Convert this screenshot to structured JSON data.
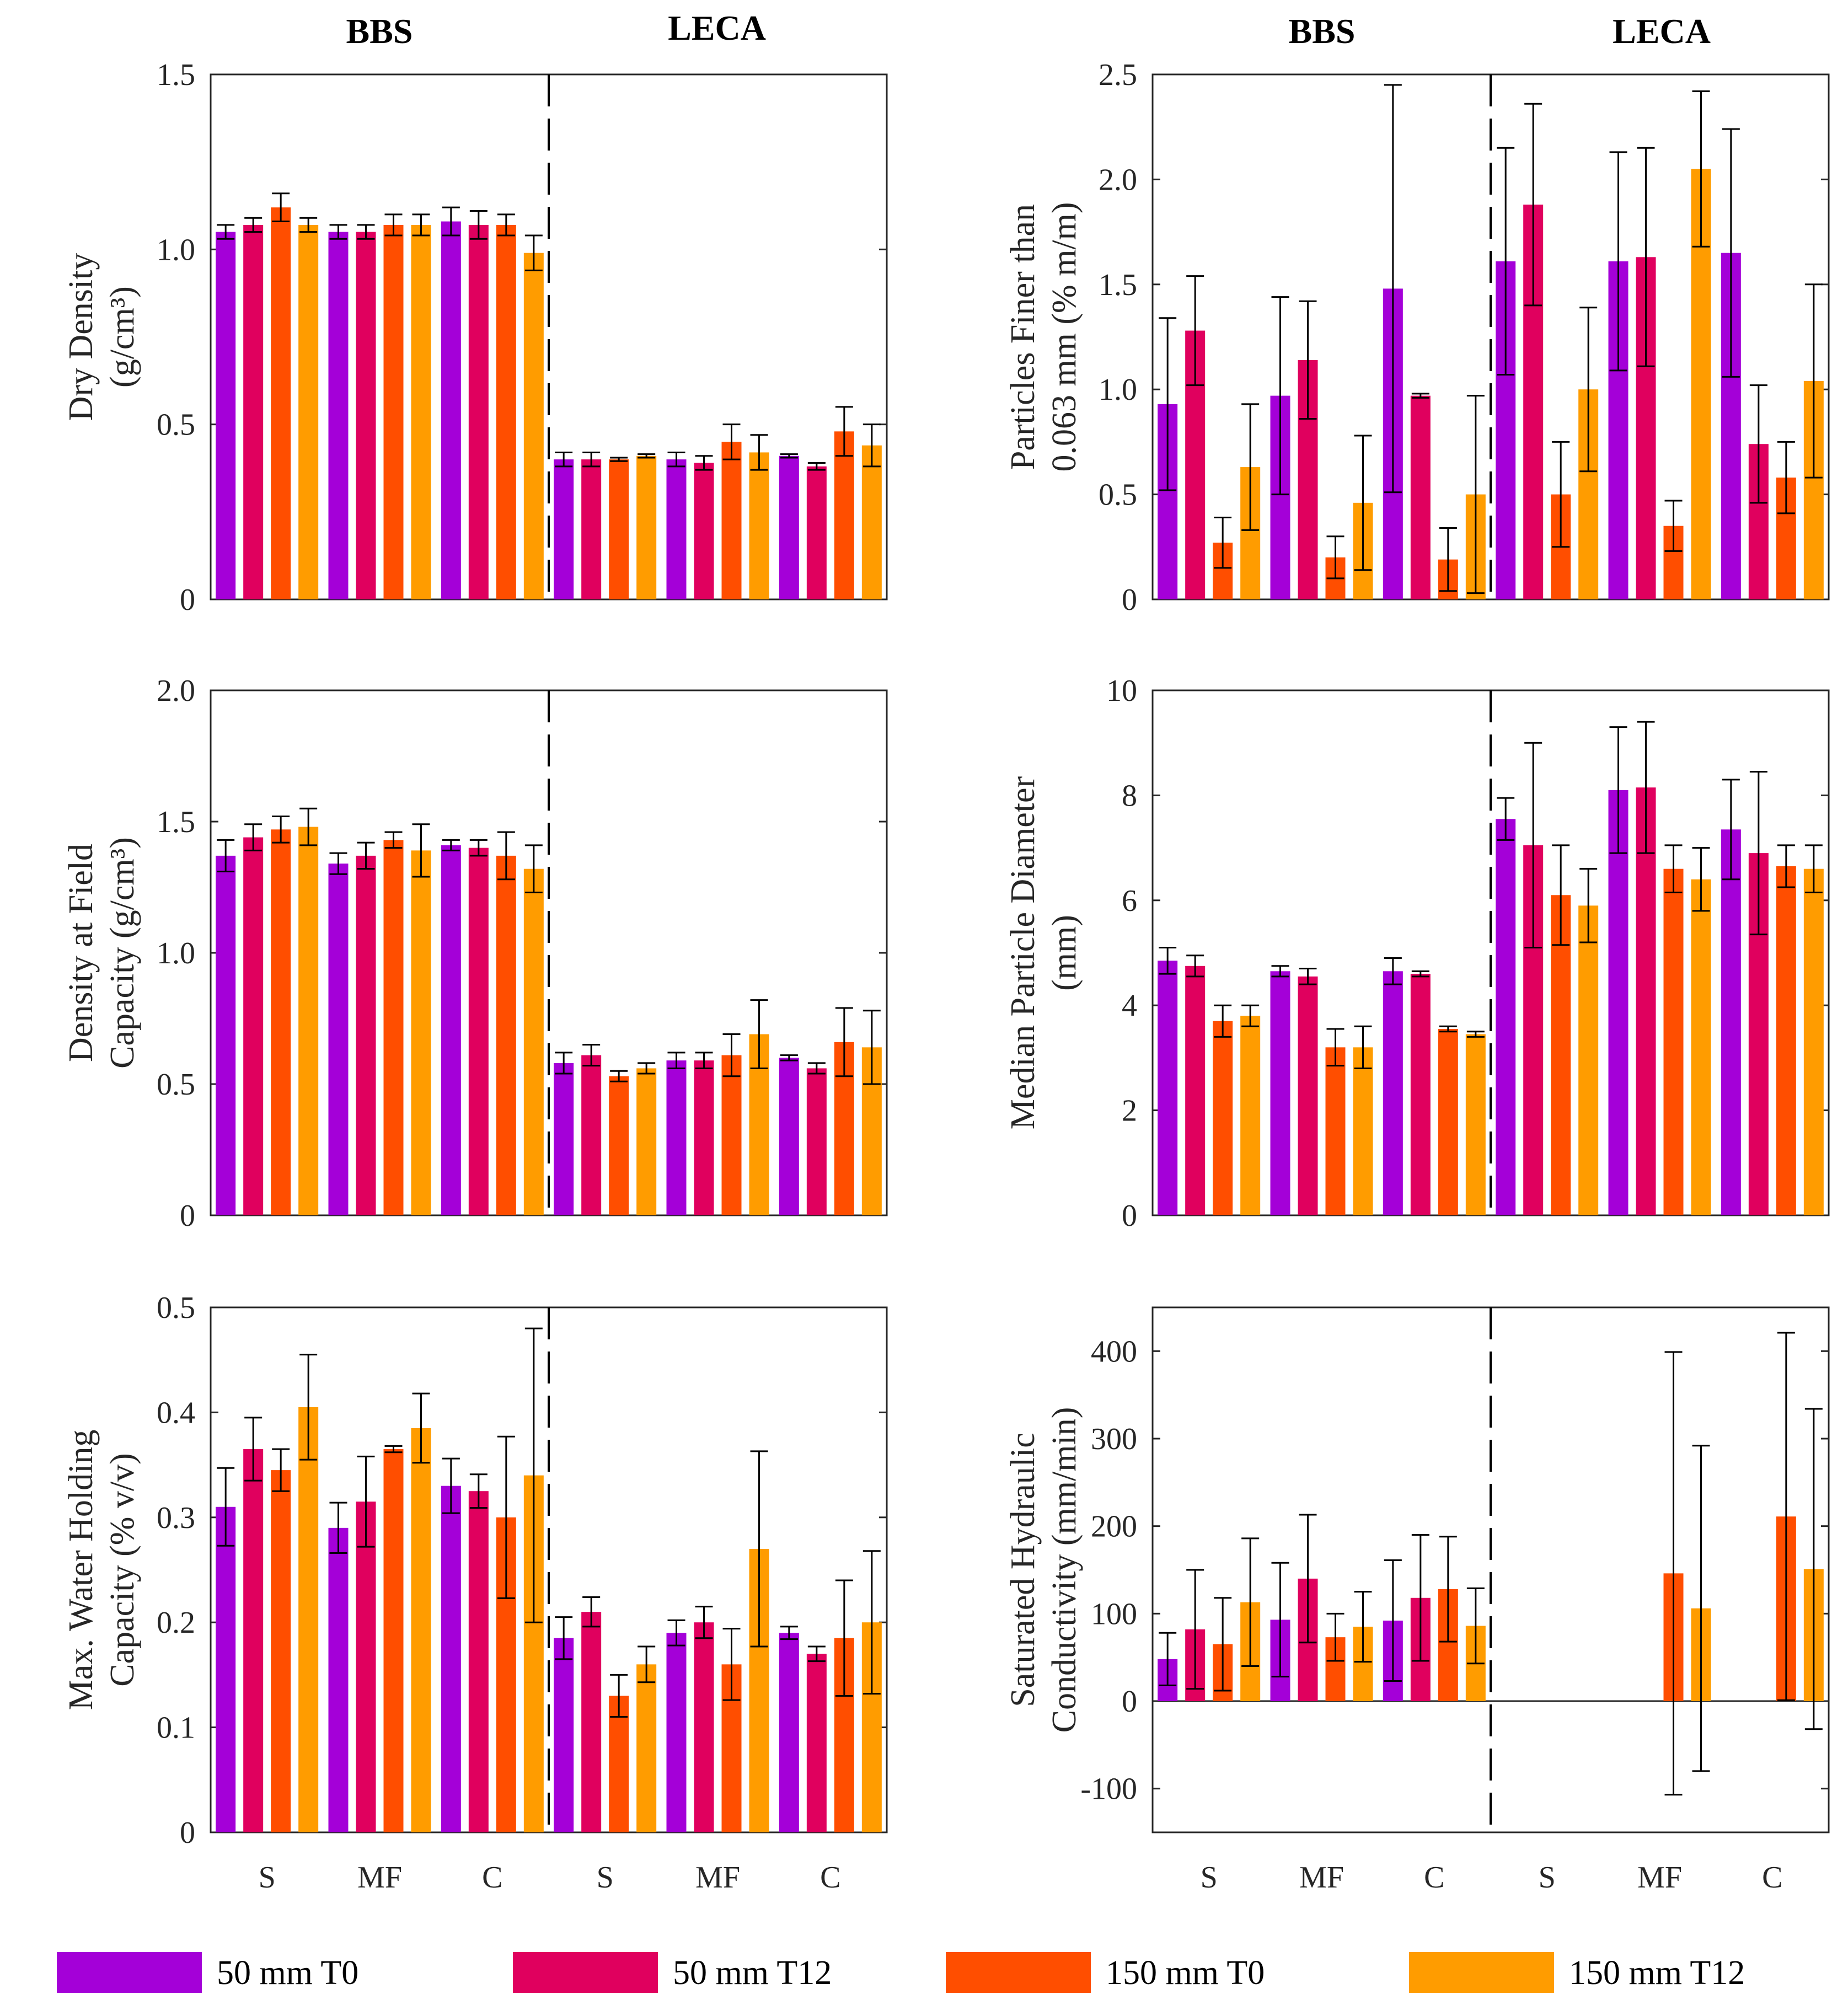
{
  "legend": [
    {
      "label": "50 mm T0",
      "color": "#A400D8"
    },
    {
      "label": "50 mm T12",
      "color": "#E0005E"
    },
    {
      "label": "150 mm T0",
      "color": "#FF4E00"
    },
    {
      "label": "150 mm T12",
      "color": "#FF9C00"
    }
  ],
  "materials": [
    "BBS",
    "LECA"
  ],
  "chart_data": [
    {
      "id": "dry-density",
      "type": "bar",
      "ylabel": [
        "Dry Density",
        "(g/cm³)"
      ],
      "ylim": [
        0,
        1.5
      ],
      "yticks": [
        "0",
        "0.5",
        "1.0",
        "1.5"
      ],
      "ytick_values": [
        0,
        0.5,
        1.0,
        1.5
      ],
      "categories": [
        "S",
        "MF",
        "C",
        "S",
        "MF",
        "C"
      ],
      "series": [
        {
          "name": "50 mm T0",
          "values": [
            1.05,
            1.05,
            1.08,
            0.4,
            0.4,
            0.41
          ],
          "err": [
            0.02,
            0.02,
            0.04,
            0.02,
            0.02,
            0.005
          ]
        },
        {
          "name": "50 mm T12",
          "values": [
            1.07,
            1.05,
            1.07,
            0.4,
            0.39,
            0.38
          ],
          "err": [
            0.02,
            0.02,
            0.04,
            0.02,
            0.02,
            0.01
          ]
        },
        {
          "name": "150 mm T0",
          "values": [
            1.12,
            1.07,
            1.07,
            0.4,
            0.45,
            0.48
          ],
          "err": [
            0.04,
            0.03,
            0.03,
            0.005,
            0.05,
            0.07
          ]
        },
        {
          "name": "150 mm T12",
          "values": [
            1.07,
            1.07,
            0.99,
            0.41,
            0.42,
            0.44
          ],
          "err": [
            0.02,
            0.03,
            0.05,
            0.005,
            0.05,
            0.06
          ]
        }
      ]
    },
    {
      "id": "fines",
      "type": "bar",
      "ylabel": [
        "Particles Finer than",
        "0.063 mm (% m/m)"
      ],
      "ylim": [
        0,
        2.5
      ],
      "yticks": [
        "0",
        "0.5",
        "1.0",
        "1.5",
        "2.0",
        "2.5"
      ],
      "ytick_values": [
        0,
        0.5,
        1.0,
        1.5,
        2.0,
        2.5
      ],
      "categories": [
        "S",
        "MF",
        "C",
        "S",
        "MF",
        "C"
      ],
      "series": [
        {
          "name": "50 mm T0",
          "values": [
            0.93,
            0.97,
            1.48,
            1.61,
            1.61,
            1.65
          ],
          "err": [
            0.41,
            0.47,
            0.97,
            0.54,
            0.52,
            0.59
          ]
        },
        {
          "name": "50 mm T12",
          "values": [
            1.28,
            1.14,
            0.97,
            1.88,
            1.63,
            0.74
          ],
          "err": [
            0.26,
            0.28,
            0.01,
            0.48,
            0.52,
            0.28
          ]
        },
        {
          "name": "150 mm T0",
          "values": [
            0.27,
            0.2,
            0.19,
            0.5,
            0.35,
            0.58
          ],
          "err": [
            0.12,
            0.1,
            0.15,
            0.25,
            0.12,
            0.17
          ]
        },
        {
          "name": "150 mm T12",
          "values": [
            0.63,
            0.46,
            0.5,
            1.0,
            2.05,
            1.04
          ],
          "err": [
            0.3,
            0.32,
            0.47,
            0.39,
            0.37,
            0.46
          ]
        }
      ]
    },
    {
      "id": "field-density",
      "type": "bar",
      "ylabel": [
        "Density at Field",
        "Capacity (g/cm³)"
      ],
      "ylim": [
        0,
        2.0
      ],
      "yticks": [
        "0",
        "0.5",
        "1.0",
        "1.5",
        "2.0"
      ],
      "ytick_values": [
        0,
        0.5,
        1.0,
        1.5,
        2.0
      ],
      "categories": [
        "S",
        "MF",
        "C",
        "S",
        "MF",
        "C"
      ],
      "series": [
        {
          "name": "50 mm T0",
          "values": [
            1.37,
            1.34,
            1.41,
            0.58,
            0.59,
            0.6
          ],
          "err": [
            0.06,
            0.04,
            0.02,
            0.04,
            0.03,
            0.01
          ]
        },
        {
          "name": "50 mm T12",
          "values": [
            1.44,
            1.37,
            1.4,
            0.61,
            0.59,
            0.56
          ],
          "err": [
            0.05,
            0.05,
            0.03,
            0.04,
            0.03,
            0.02
          ]
        },
        {
          "name": "150 mm T0",
          "values": [
            1.47,
            1.43,
            1.37,
            0.53,
            0.61,
            0.66
          ],
          "err": [
            0.05,
            0.03,
            0.09,
            0.02,
            0.08,
            0.13
          ]
        },
        {
          "name": "150 mm T12",
          "values": [
            1.48,
            1.39,
            1.32,
            0.56,
            0.69,
            0.64
          ],
          "err": [
            0.07,
            0.1,
            0.09,
            0.02,
            0.13,
            0.14
          ]
        }
      ]
    },
    {
      "id": "median-diameter",
      "type": "bar",
      "ylabel": [
        "Median Particle Diameter",
        "(mm)"
      ],
      "ylim": [
        0,
        10
      ],
      "yticks": [
        "0",
        "2",
        "4",
        "6",
        "8",
        "10"
      ],
      "ytick_values": [
        0,
        2,
        4,
        6,
        8,
        10
      ],
      "categories": [
        "S",
        "MF",
        "C",
        "S",
        "MF",
        "C"
      ],
      "series": [
        {
          "name": "50 mm T0",
          "values": [
            4.85,
            4.65,
            4.65,
            7.55,
            8.1,
            7.35
          ],
          "err": [
            0.25,
            0.1,
            0.25,
            0.4,
            1.2,
            0.95
          ]
        },
        {
          "name": "50 mm T12",
          "values": [
            4.75,
            4.55,
            4.6,
            7.05,
            8.15,
            6.9
          ],
          "err": [
            0.2,
            0.15,
            0.05,
            1.95,
            1.25,
            1.55
          ]
        },
        {
          "name": "150 mm T0",
          "values": [
            3.7,
            3.2,
            3.55,
            6.1,
            6.6,
            6.65
          ],
          "err": [
            0.3,
            0.35,
            0.05,
            0.95,
            0.45,
            0.4
          ]
        },
        {
          "name": "150 mm T12",
          "values": [
            3.8,
            3.2,
            3.45,
            5.9,
            6.4,
            6.6
          ],
          "err": [
            0.2,
            0.4,
            0.05,
            0.7,
            0.6,
            0.45
          ]
        }
      ]
    },
    {
      "id": "water-holding",
      "type": "bar",
      "ylabel": [
        "Max. Water Holding",
        "Capacity (% v/v)"
      ],
      "ylim": [
        0,
        0.5
      ],
      "yticks": [
        "0",
        "0.1",
        "0.2",
        "0.3",
        "0.4",
        "0.5"
      ],
      "ytick_values": [
        0,
        0.1,
        0.2,
        0.3,
        0.4,
        0.5
      ],
      "categories": [
        "S",
        "MF",
        "C",
        "S",
        "MF",
        "C"
      ],
      "series": [
        {
          "name": "50 mm T0",
          "values": [
            0.31,
            0.29,
            0.33,
            0.185,
            0.19,
            0.19
          ],
          "err": [
            0.037,
            0.024,
            0.026,
            0.02,
            0.012,
            0.006
          ]
        },
        {
          "name": "50 mm T12",
          "values": [
            0.365,
            0.315,
            0.325,
            0.21,
            0.2,
            0.17
          ],
          "err": [
            0.03,
            0.043,
            0.016,
            0.014,
            0.015,
            0.007
          ]
        },
        {
          "name": "150 mm T0",
          "values": [
            0.345,
            0.365,
            0.3,
            0.13,
            0.16,
            0.185
          ],
          "err": [
            0.02,
            0.003,
            0.077,
            0.02,
            0.034,
            0.055
          ]
        },
        {
          "name": "150 mm T12",
          "values": [
            0.405,
            0.385,
            0.34,
            0.16,
            0.27,
            0.2
          ],
          "err": [
            0.05,
            0.033,
            0.14,
            0.017,
            0.093,
            0.068
          ]
        }
      ]
    },
    {
      "id": "conductivity",
      "type": "bar",
      "ylabel": [
        "Saturated Hydraulic",
        "Conductivity (mm/min)"
      ],
      "ylim": [
        -150,
        450
      ],
      "yticks": [
        "-100",
        "0",
        "100",
        "200",
        "300",
        "400"
      ],
      "ytick_values": [
        -100,
        0,
        100,
        200,
        300,
        400
      ],
      "zero_line": true,
      "categories": [
        "S",
        "MF",
        "C",
        "S",
        "MF",
        "C"
      ],
      "series": [
        {
          "name": "50 mm T0",
          "values": [
            48,
            93,
            92,
            null,
            null,
            null
          ],
          "err": [
            30,
            65,
            69,
            null,
            null,
            null
          ]
        },
        {
          "name": "50 mm T12",
          "values": [
            82,
            140,
            118,
            null,
            null,
            null
          ],
          "err": [
            68,
            73,
            72,
            null,
            null,
            null
          ]
        },
        {
          "name": "150 mm T0",
          "values": [
            65,
            73,
            128,
            null,
            146,
            211
          ],
          "err": [
            53,
            27,
            60,
            null,
            253,
            210
          ]
        },
        {
          "name": "150 mm T12",
          "values": [
            113,
            85,
            86,
            null,
            106,
            151
          ],
          "err": [
            73,
            40,
            43,
            null,
            186,
            183
          ]
        }
      ]
    }
  ]
}
